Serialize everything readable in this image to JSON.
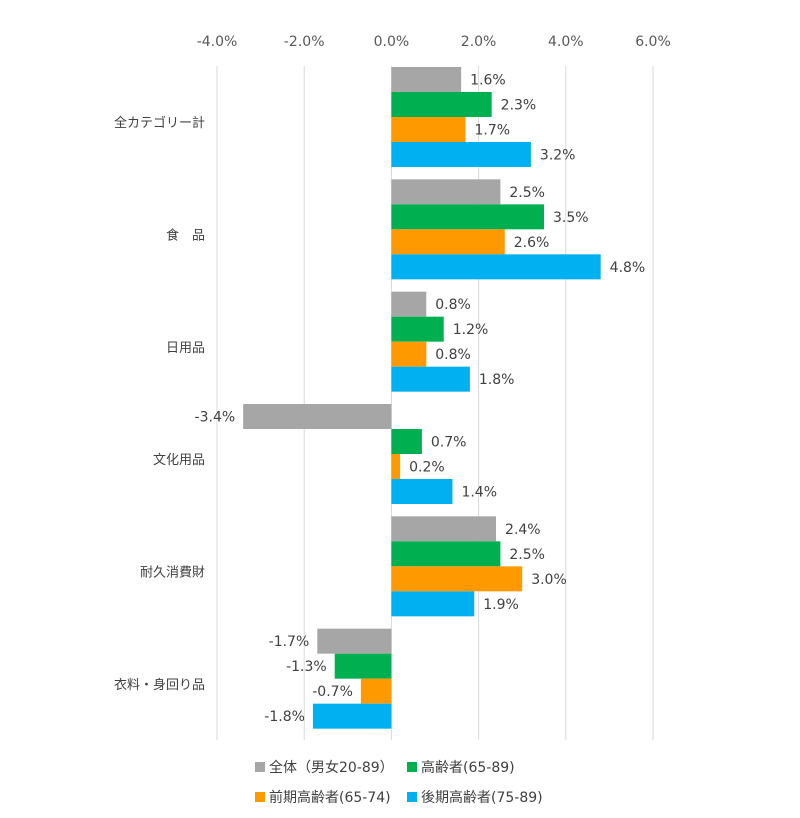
{
  "chart_data": {
    "type": "bar",
    "orientation": "horizontal",
    "categories": [
      "全カテゴリー計",
      "食　品",
      "日用品",
      "文化用品",
      "耐久消費財",
      "衣料・身回り品"
    ],
    "series": [
      {
        "name": "全体（男女20-89）",
        "values": [
          1.6,
          2.5,
          0.8,
          -3.4,
          2.4,
          -1.7
        ],
        "color": "#a6a6a6"
      },
      {
        "name": "高齢者(65-89)",
        "values": [
          2.3,
          3.5,
          1.2,
          0.7,
          2.5,
          -1.3
        ],
        "color": "#00b050"
      },
      {
        "name": "前期高齢者(65-74)",
        "values": [
          1.7,
          2.6,
          0.8,
          0.2,
          3.0,
          -0.7
        ],
        "color": "#ff9900"
      },
      {
        "name": "後期高齢者(75-89)",
        "values": [
          3.2,
          4.8,
          1.8,
          1.4,
          1.9,
          -1.8
        ],
        "color": "#00b0f0"
      }
    ],
    "xlim": [
      -4.0,
      6.0
    ],
    "xticks": [
      -4.0,
      -2.0,
      0.0,
      2.0,
      4.0,
      6.0
    ],
    "tick_labels": [
      "-4.0%",
      "-2.0%",
      "0.0%",
      "2.0%",
      "4.0%",
      "6.0%"
    ],
    "data_labels": [
      [
        "1.6%",
        "2.5%",
        "0.8%",
        "-3.4%",
        "2.4%",
        "-1.7%"
      ],
      [
        "2.3%",
        "3.5%",
        "1.2%",
        "0.7%",
        "2.5%",
        "-1.3%"
      ],
      [
        "1.7%",
        "2.6%",
        "0.8%",
        "0.2%",
        "3.0%",
        "-0.7%"
      ],
      [
        "3.2%",
        "4.8%",
        "1.8%",
        "1.4%",
        "1.9%",
        "-1.8%"
      ]
    ],
    "grid": true,
    "legend_position": "bottom"
  }
}
